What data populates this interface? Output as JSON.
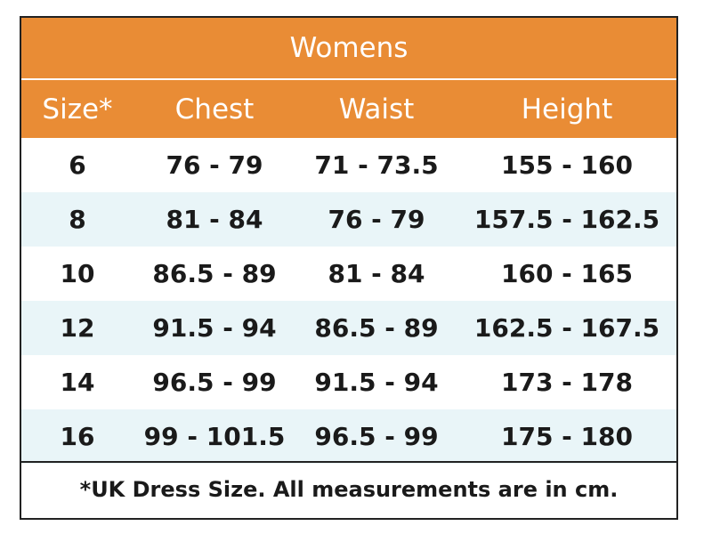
{
  "table": {
    "title": "Womens",
    "header_bg": "#e98c35",
    "stripe_bg": "#e9f5f8",
    "columns": [
      "Size*",
      "Chest",
      "Waist",
      "Height"
    ],
    "rows": [
      [
        "6",
        "76 - 79",
        "71 - 73.5",
        "155 - 160"
      ],
      [
        "8",
        "81 - 84",
        "76 - 79",
        "157.5 - 162.5"
      ],
      [
        "10",
        "86.5 - 89",
        "81 - 84",
        "160 - 165"
      ],
      [
        "12",
        "91.5 - 94",
        "86.5 - 89",
        "162.5 - 167.5"
      ],
      [
        "14",
        "96.5 - 99",
        "91.5 - 94",
        "173 - 178"
      ],
      [
        "16",
        "99 - 101.5",
        "96.5 - 99",
        "175 - 180"
      ]
    ],
    "footnote": "*UK Dress Size. All measurements are in cm."
  }
}
